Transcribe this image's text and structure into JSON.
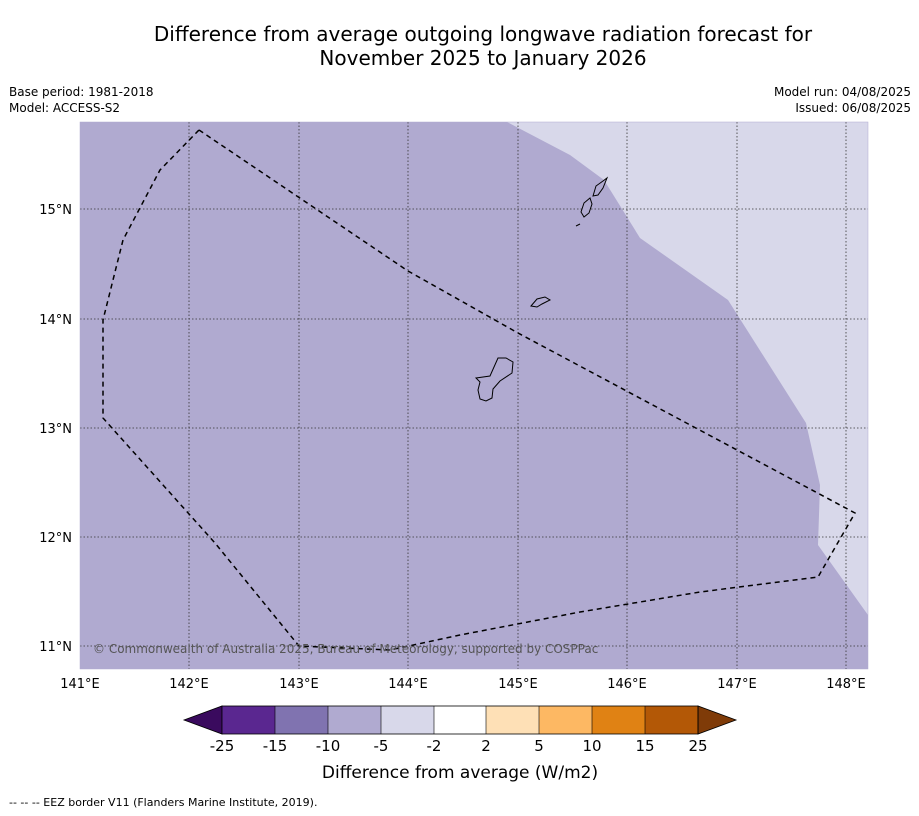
{
  "title_line1": "Difference from average outgoing longwave radiation forecast for",
  "title_line2": "November 2025 to January 2026",
  "meta_left": {
    "base_period": "Base period: 1981-2018",
    "model": "Model: ACCESS-S2"
  },
  "meta_right": {
    "model_run": "Model run: 04/08/2025",
    "issued": "Issued: 06/08/2025"
  },
  "map": {
    "lon_range": [
      141,
      148.2
    ],
    "lat_range": [
      10.8,
      15.8
    ],
    "lon_ticks": [
      "141°E",
      "142°E",
      "143°E",
      "144°E",
      "145°E",
      "146°E",
      "147°E",
      "148°E"
    ],
    "lat_ticks": [
      "15°N",
      "14°N",
      "13°N",
      "12°N",
      "11°N"
    ],
    "copyright": "© Commonwealth of Australia 2025, Bureau of Meteorology, supported by COSPPac",
    "colors": {
      "main_bin": "#b0aad0",
      "light_bin": "#d8d8ea"
    }
  },
  "colorbar": {
    "labels": [
      "-25",
      "-15",
      "-10",
      "-5",
      "-2",
      "2",
      "5",
      "10",
      "15",
      "25"
    ],
    "colors": [
      "#3a0a5e",
      "#5a2790",
      "#8073b0",
      "#b0aad0",
      "#d8d8ea",
      "#ffffff",
      "#fee0b6",
      "#fdb863",
      "#e08214",
      "#b35806",
      "#7f3b08"
    ],
    "title": "Difference from average (W/m2)"
  },
  "footer": "--  --  -- EEZ border V11 (Flanders Marine Institute, 2019)."
}
